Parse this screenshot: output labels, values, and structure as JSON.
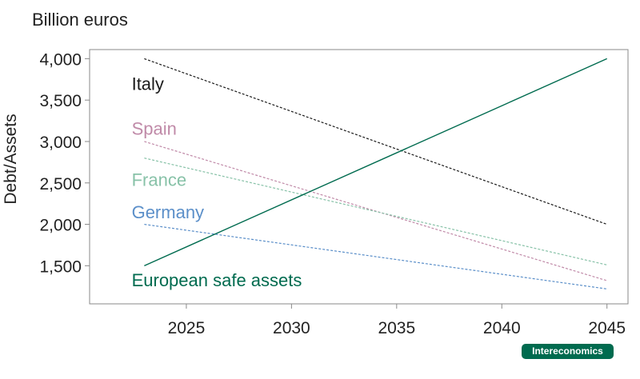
{
  "units_label": "Billion euros",
  "brand_label": "Intereconomics",
  "chart_data": {
    "type": "line",
    "ylabel": "Debt/Assets",
    "xlabel": "",
    "xlim": [
      2020.4,
      2046.0
    ],
    "ylim": [
      1040,
      4110
    ],
    "xticks": [
      2025,
      2030,
      2035,
      2040,
      2045
    ],
    "yticks": [
      1500,
      2000,
      2500,
      3000,
      3500,
      4000
    ],
    "grid": false,
    "series": [
      {
        "name": "Italy",
        "style": "dashed",
        "color": "#1a1a1a",
        "x": [
          2023,
          2045
        ],
        "y": [
          4000,
          2000
        ],
        "label_x": 2022.4,
        "label_y": 3700
      },
      {
        "name": "Spain",
        "style": "dashed",
        "color": "#c08aa8",
        "x": [
          2023,
          2045
        ],
        "y": [
          3000,
          1320
        ],
        "label_x": 2022.4,
        "label_y": 3160
      },
      {
        "name": "France",
        "style": "dashed",
        "color": "#88c2a8",
        "x": [
          2023,
          2045
        ],
        "y": [
          2800,
          1510
        ],
        "label_x": 2022.4,
        "label_y": 2540
      },
      {
        "name": "Germany",
        "style": "dashed",
        "color": "#5b8fc9",
        "x": [
          2023,
          2045
        ],
        "y": [
          2000,
          1220
        ],
        "label_x": 2022.4,
        "label_y": 2150
      },
      {
        "name": "European safe assets",
        "style": "solid",
        "color": "#006b4f",
        "x": [
          2023,
          2045
        ],
        "y": [
          1500,
          4000
        ],
        "label_x": 2022.4,
        "label_y": 1330
      }
    ]
  }
}
